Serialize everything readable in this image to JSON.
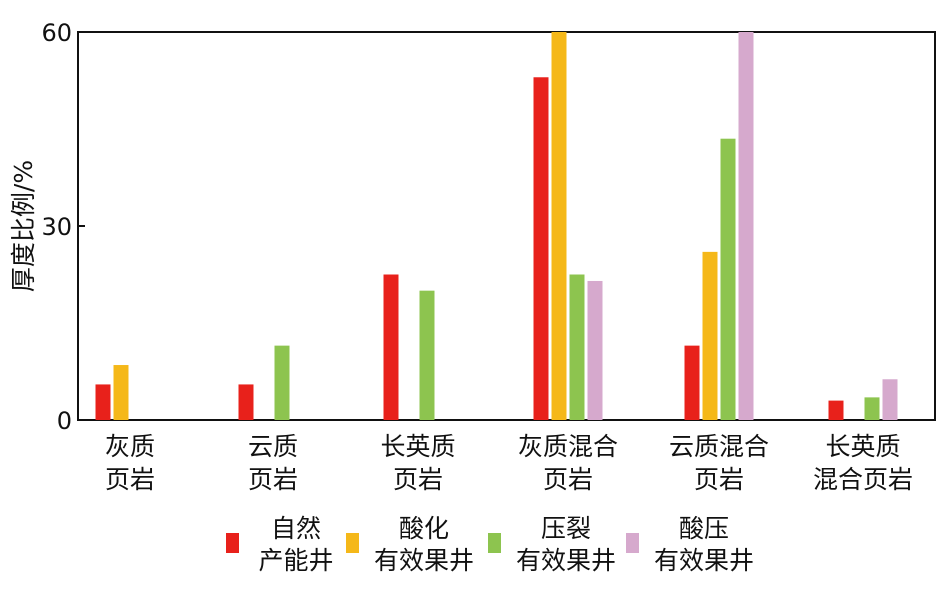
{
  "chart_data": {
    "type": "bar",
    "ylabel": "厚度比例/%",
    "ylim": [
      0,
      60
    ],
    "yticks": [
      "0",
      "30",
      "60"
    ],
    "grid": false,
    "legend_position": "bottom",
    "categories": [
      [
        "灰质",
        "页岩"
      ],
      [
        "云质",
        "页岩"
      ],
      [
        "长英质",
        "页岩"
      ],
      [
        "灰质混合",
        "页岩"
      ],
      [
        "云质混合",
        "页岩"
      ],
      [
        "长英质",
        "混合页岩"
      ]
    ],
    "series": [
      {
        "name": [
          "自然",
          "产能井"
        ],
        "color": "#e8211b",
        "values": [
          5.5,
          5.5,
          22.5,
          53,
          11.5,
          3
        ]
      },
      {
        "name": [
          "酸化",
          "有效果井"
        ],
        "color": "#f5b819",
        "values": [
          8.5,
          null,
          null,
          60,
          26,
          null
        ]
      },
      {
        "name": [
          "压裂",
          "有效果井"
        ],
        "color": "#8dc44f",
        "values": [
          null,
          11.5,
          20,
          22.5,
          43.5,
          3.5
        ]
      },
      {
        "name": [
          "酸压",
          "有效果井"
        ],
        "color": "#d6a9cd",
        "values": [
          null,
          null,
          null,
          21.5,
          60,
          6.3
        ]
      }
    ]
  }
}
